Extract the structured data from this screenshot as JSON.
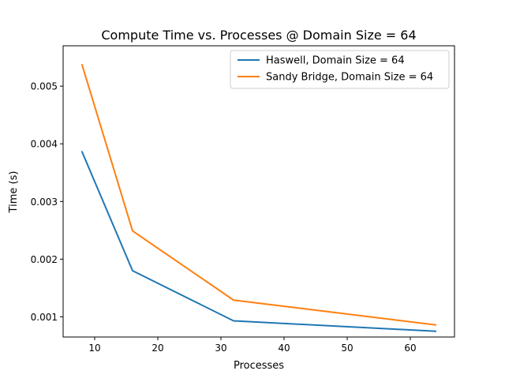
{
  "chart_data": {
    "type": "line",
    "title": "Compute Time vs. Processes @ Domain Size = 64",
    "xlabel": "Processes",
    "ylabel": "Time (s)",
    "xlim": [
      5,
      67
    ],
    "ylim": [
      0.00065,
      0.0057
    ],
    "xticks": [
      10,
      20,
      30,
      40,
      50,
      60
    ],
    "yticks": [
      0.001,
      0.002,
      0.003,
      0.004,
      0.005
    ],
    "xtick_labels": [
      "10",
      "20",
      "30",
      "40",
      "50",
      "60"
    ],
    "ytick_labels": [
      "0.001",
      "0.002",
      "0.003",
      "0.004",
      "0.005"
    ],
    "grid": false,
    "legend_position": "upper right",
    "x": [
      8,
      16,
      32,
      64
    ],
    "series": [
      {
        "name": "Haswell, Domain Size = 64",
        "color": "#1f77b4",
        "values": [
          0.00386,
          0.0018,
          0.00093,
          0.00075
        ]
      },
      {
        "name": "Sandy Bridge, Domain Size = 64",
        "color": "#ff7f0e",
        "values": [
          0.00537,
          0.00249,
          0.00129,
          0.00086
        ]
      }
    ]
  }
}
